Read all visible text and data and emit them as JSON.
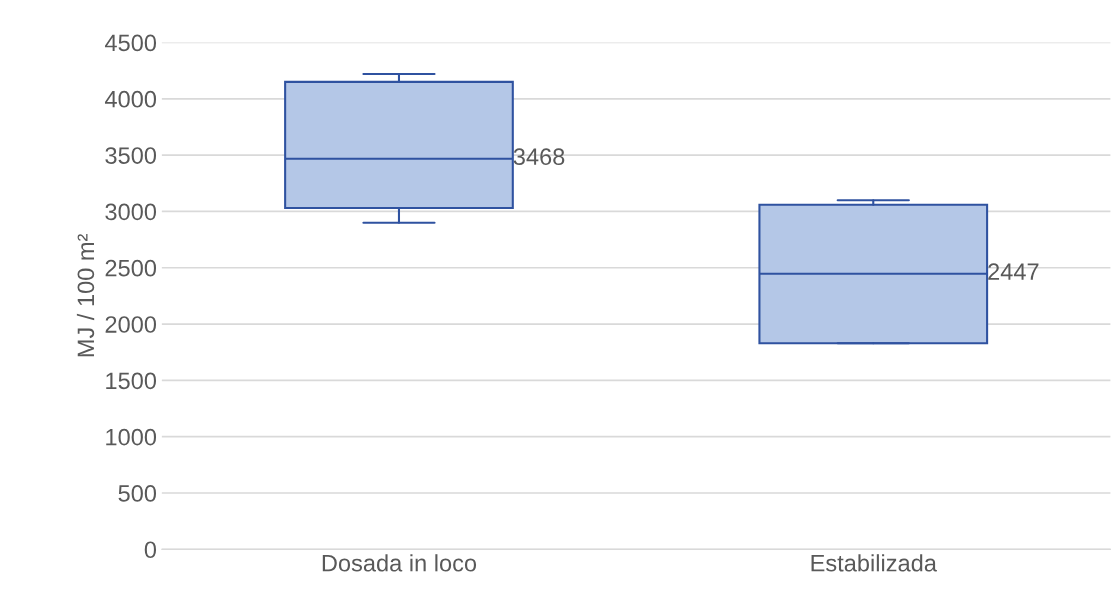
{
  "chart_data": {
    "type": "box",
    "ylabel": "MJ / 100 m²",
    "categories": [
      "Dosada in loco",
      "Estabilizada"
    ],
    "boxes": [
      {
        "low": 2900,
        "q1": 3030,
        "median": 3468,
        "q3": 4150,
        "high": 4220
      },
      {
        "low": 1830,
        "q1": 1830,
        "median": 2447,
        "q3": 3060,
        "high": 3100
      }
    ],
    "color": "#b4c7e7",
    "annotations": [
      "3468",
      "2447"
    ],
    "ylim": [
      0,
      4500
    ],
    "yticks": [
      0,
      500,
      1000,
      1500,
      2000,
      2500,
      3000,
      3500,
      4000,
      4500
    ],
    "grid": "y",
    "legend": false
  }
}
